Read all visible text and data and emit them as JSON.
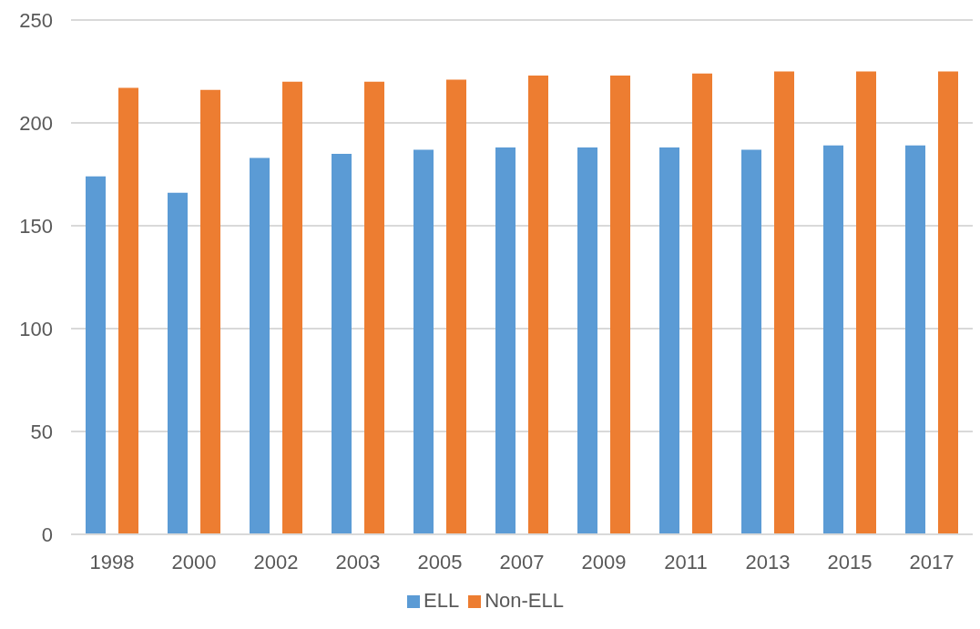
{
  "chart_data": {
    "type": "bar",
    "categories": [
      "1998",
      "2000",
      "2002",
      "2003",
      "2005",
      "2007",
      "2009",
      "2011",
      "2013",
      "2015",
      "2017"
    ],
    "series": [
      {
        "name": "ELL",
        "color": "#5b9bd5",
        "values": [
          174,
          166,
          183,
          185,
          187,
          188,
          188,
          188,
          187,
          189,
          189
        ]
      },
      {
        "name": "Non-ELL",
        "color": "#ed7d31",
        "values": [
          217,
          216,
          220,
          220,
          221,
          223,
          223,
          224,
          225,
          225,
          225
        ]
      }
    ],
    "ylim": [
      0,
      250
    ],
    "yticks": [
      0,
      50,
      100,
      150,
      200,
      250
    ],
    "grid": "y",
    "legend": "bottom"
  }
}
